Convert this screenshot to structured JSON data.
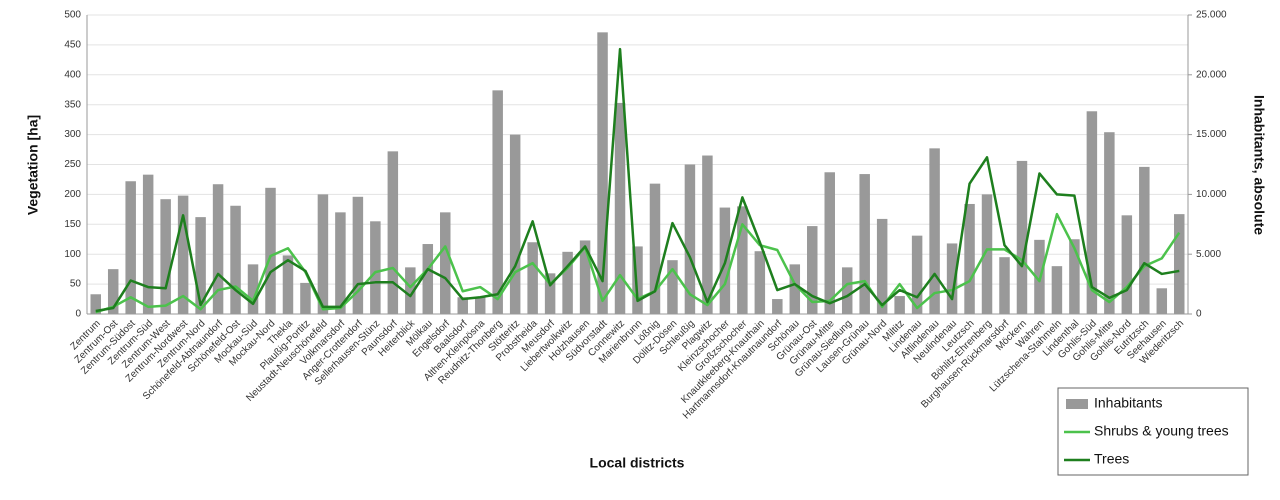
{
  "chart_data": {
    "type": "bar-line",
    "x_label": "Local districts",
    "y_label": "Vegetation [ha]",
    "y2_label": "Inhabitants, absolute",
    "categories": [
      "Zentrum",
      "Zentrum-Ost",
      "Zentrum-Südost",
      "Zentrum-Süd",
      "Zentrum-West",
      "Zentrum-Nordwest",
      "Zentrum-Nord",
      "Schönefeld-Abtnaundorf",
      "Schönefeld-Ost",
      "Mockau-Süd",
      "Mockau-Nord",
      "Thekla",
      "Plaußig-Portitz",
      "Neustadt-Neuschönefeld",
      "Volkmarsdorf",
      "Anger-Crottendorf",
      "Sellerhausen-Stünz",
      "Paunsdorf",
      "Heiterblick",
      "Mölkau",
      "Engelsdorf",
      "Baalsdorf",
      "Althen-Kleinpösna",
      "Reudnitz-Thonberg",
      "Stötteritz",
      "Probstheida",
      "Meusdorf",
      "Liebertwolkwitz",
      "Holzhausen",
      "Südvorstadt",
      "Connewitz",
      "Marienbrunn",
      "Lößnig",
      "Dölitz-Dösen",
      "Schleußig",
      "Plagwitz",
      "Kleinzschocher",
      "Großzschocher",
      "Knautkleeberg-Knauthain",
      "Hartmannsdorf-Knautnaundorf",
      "Schönau",
      "Grünau-Ost",
      "Grünau-Mitte",
      "Grünau-Siedlung",
      "Lausen-Grünau",
      "Grünau-Nord",
      "Miltitz",
      "Lindenau",
      "Altlindenau",
      "Neulindenau",
      "Leutzsch",
      "Böhlitz-Ehrenberg",
      "Burghausen-Rückmarsdorf",
      "Möckern",
      "Wahren",
      "Lützschena-Stahmeln",
      "Lindenthal",
      "Gohlis-Süd",
      "Gohlis-Mitte",
      "Gohlis-Nord",
      "Eutritzsch",
      "Seehausen",
      "Wiederitzsch"
    ],
    "series": [
      {
        "name": "Inhabitants",
        "type": "bar",
        "axis": "y2",
        "color": "#999999",
        "values": [
          1650,
          3750,
          11100,
          11650,
          9600,
          9900,
          8100,
          10850,
          9050,
          4150,
          10550,
          4900,
          2600,
          10000,
          8500,
          9800,
          7750,
          13600,
          3900,
          5850,
          8500,
          1400,
          1400,
          18700,
          15000,
          6000,
          3400,
          5200,
          6150,
          23550,
          17650,
          5650,
          10900,
          4500,
          12500,
          13250,
          8900,
          9000,
          5250,
          1250,
          4150,
          7350,
          11850,
          3900,
          11700,
          7950,
          1500,
          6550,
          13850,
          5900,
          9200,
          10000,
          4750,
          12800,
          6200,
          4000,
          6250,
          16950,
          15200,
          8250,
          12300,
          2150,
          8350
        ]
      },
      {
        "name": "Shrubs & young trees",
        "type": "line",
        "color": "#4cc24c",
        "values": [
          3,
          12,
          28,
          12,
          14,
          30,
          8,
          40,
          46,
          22,
          97,
          110,
          70,
          8,
          10,
          38,
          70,
          77,
          45,
          75,
          113,
          38,
          45,
          25,
          70,
          85,
          50,
          77,
          112,
          22,
          65,
          25,
          38,
          75,
          33,
          15,
          50,
          150,
          115,
          107,
          50,
          20,
          22,
          50,
          55,
          12,
          50,
          10,
          35,
          40,
          55,
          108,
          108,
          90,
          55,
          167,
          110,
          40,
          20,
          45,
          80,
          93,
          136
        ]
      },
      {
        "name": "Trees",
        "type": "line",
        "color": "#1e7f1e",
        "values": [
          5,
          10,
          56,
          45,
          43,
          165,
          15,
          67,
          40,
          17,
          70,
          90,
          72,
          12,
          12,
          50,
          53,
          53,
          30,
          75,
          60,
          25,
          28,
          33,
          80,
          155,
          48,
          80,
          113,
          55,
          443,
          22,
          38,
          152,
          95,
          20,
          85,
          195,
          120,
          40,
          50,
          30,
          18,
          30,
          50,
          15,
          40,
          28,
          67,
          25,
          218,
          262,
          115,
          80,
          235,
          200,
          198,
          45,
          27,
          40,
          85,
          67,
          72
        ]
      }
    ],
    "ylim": [
      0,
      500
    ],
    "yticks": [
      0,
      50,
      100,
      150,
      200,
      250,
      300,
      350,
      400,
      450,
      500
    ],
    "y2lim": [
      0,
      25000
    ],
    "y2ticks": [
      0,
      {
        "value": 5000,
        "label": "5.000"
      },
      {
        "value": 10000,
        "label": "10.000"
      },
      {
        "value": 15000,
        "label": "15.000"
      },
      {
        "value": 20000,
        "label": "20.000"
      },
      {
        "value": 25000,
        "label": "25.000"
      }
    ],
    "grid": true,
    "legend": "bottom-right"
  }
}
